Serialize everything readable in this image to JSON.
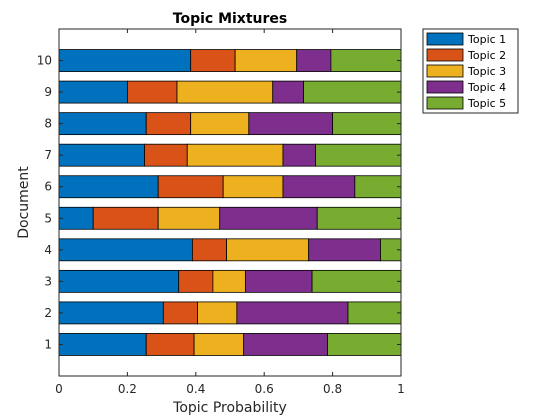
{
  "chart_data": {
    "type": "bar",
    "orientation": "horizontal",
    "stacked": true,
    "title": "Topic Mixtures",
    "xlabel": "Topic Probability",
    "ylabel": "Document",
    "xlim": [
      0,
      1
    ],
    "xticks": [
      "0",
      "0.2",
      "0.4",
      "0.6",
      "0.8",
      "1"
    ],
    "categories": [
      "1",
      "2",
      "3",
      "4",
      "5",
      "6",
      "7",
      "8",
      "9",
      "10"
    ],
    "legend_position": "outside top-right",
    "series": [
      {
        "name": "Topic 1",
        "color": "#0072BD",
        "values": [
          0.255,
          0.305,
          0.35,
          0.39,
          0.1,
          0.29,
          0.25,
          0.255,
          0.2,
          0.385
        ]
      },
      {
        "name": "Topic 2",
        "color": "#D95319",
        "values": [
          0.14,
          0.1,
          0.1,
          0.1,
          0.19,
          0.19,
          0.125,
          0.13,
          0.145,
          0.13
        ]
      },
      {
        "name": "Topic 3",
        "color": "#EDB120",
        "values": [
          0.145,
          0.115,
          0.095,
          0.24,
          0.18,
          0.175,
          0.28,
          0.17,
          0.28,
          0.18
        ]
      },
      {
        "name": "Topic 4",
        "color": "#7E2F8E",
        "values": [
          0.245,
          0.325,
          0.195,
          0.21,
          0.285,
          0.21,
          0.095,
          0.245,
          0.09,
          0.1
        ]
      },
      {
        "name": "Topic 5",
        "color": "#77AC30",
        "values": [
          0.215,
          0.155,
          0.26,
          0.06,
          0.245,
          0.135,
          0.25,
          0.2,
          0.285,
          0.205
        ]
      }
    ]
  }
}
